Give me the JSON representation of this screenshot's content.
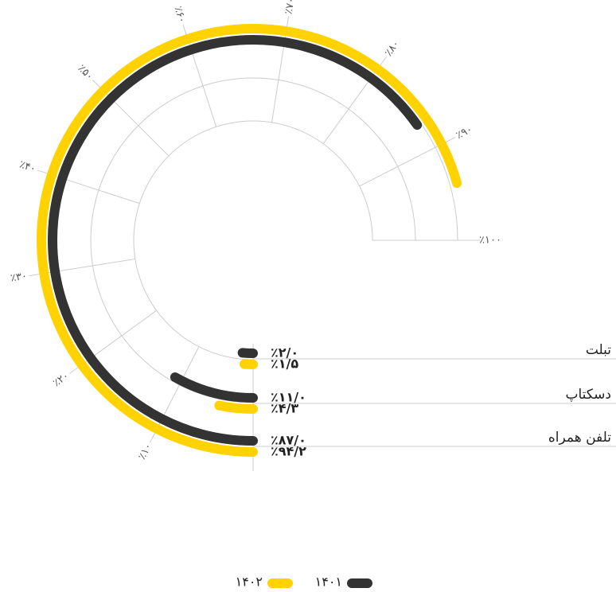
{
  "chart_data": {
    "type": "radial-bar",
    "categories": [
      "تلفن همراه",
      "دسکتاپ",
      "تبلت"
    ],
    "series": [
      {
        "name": "۱۴۰۱",
        "color": "#333333",
        "values": [
          87.0,
          11.0,
          2.0
        ],
        "value_labels": [
          "٪۸۷/۰",
          "٪۱۱/۰",
          "٪۲/۰"
        ]
      },
      {
        "name": "۱۴۰۲",
        "color": "#ffd200",
        "values": [
          94.2,
          4.3,
          1.5
        ],
        "value_labels": [
          "٪۹۴/۲",
          "٪۴/۳",
          "٪۱/۵"
        ]
      }
    ],
    "ylim": [
      0,
      100
    ],
    "yticks": [
      {
        "value": 10,
        "label": "٪۱۰"
      },
      {
        "value": 20,
        "label": "٪۲۰"
      },
      {
        "value": 30,
        "label": "٪۳۰"
      },
      {
        "value": 40,
        "label": "٪۴۰"
      },
      {
        "value": 50,
        "label": "٪۵۰"
      },
      {
        "value": 60,
        "label": "٪۶۰"
      },
      {
        "value": 70,
        "label": "٪۷۰"
      },
      {
        "value": 80,
        "label": "٪۸۰"
      },
      {
        "value": 90,
        "label": "٪۹۰"
      },
      {
        "value": 100,
        "label": "٪۱۰۰"
      }
    ],
    "grid": true
  }
}
